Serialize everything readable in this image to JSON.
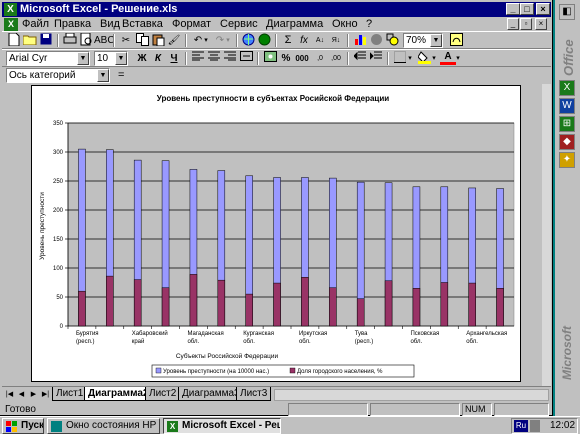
{
  "window": {
    "title": "Microsoft Excel - Решение.xls",
    "app_icon": "X"
  },
  "menu": [
    "Файл",
    "Правка",
    "Вид",
    "Вставка",
    "Формат",
    "Сервис",
    "Диаграмма",
    "Окно",
    "?"
  ],
  "toolbar": {
    "zoom": "70%",
    "font_name": "Arial Cyr",
    "font_size": "10",
    "bold": "Ж",
    "italic": "К",
    "underline": "Ч",
    "percent": "%",
    "currency_icon": "money-icon",
    "font_color": "#ff0000",
    "fill_color": "#ffff00"
  },
  "formula_bar": {
    "name_box": "Ось категорий",
    "equals": "="
  },
  "chart_data": {
    "type": "bar",
    "title": "Уровень преступности в субъектах Росийской Федерации",
    "xlabel": "Субъекты Российской Федерации",
    "ylabel": "Уровень преступности",
    "ylim": [
      0,
      350
    ],
    "yticks": [
      0,
      50,
      100,
      150,
      200,
      250,
      300,
      350
    ],
    "grid": true,
    "legend": "bottom",
    "category_labels": [
      "Бурятия (респ.)",
      "Хабаровский край",
      "Магаданская обл.",
      "Курганская обл.",
      "Иркутская обл.",
      "Тува (респ.)",
      "Псковская обл.",
      "Архангельская обл."
    ],
    "categories": [
      "Бурятия (респ.)",
      "",
      "Хабаровский край",
      "",
      "Магаданская обл.",
      "",
      "Курганская обл.",
      "",
      "Иркутская обл.",
      "",
      "Тува (респ.)",
      "",
      "Псковская обл.",
      "",
      "Архангельская обл.",
      ""
    ],
    "series": [
      {
        "name": "Уровень преступности (на 10000 нас.)",
        "color": "#9999ff",
        "values": [
          305,
          304,
          286,
          285,
          270,
          268,
          259,
          256,
          256,
          255,
          248,
          247,
          240,
          240,
          238,
          237
        ]
      },
      {
        "name": "Доля городского населения, %",
        "color": "#993366",
        "values": [
          60,
          86,
          80,
          66,
          89,
          79,
          55,
          74,
          84,
          66,
          47,
          78,
          65,
          75,
          74,
          65
        ]
      }
    ]
  },
  "sheet_tabs": [
    {
      "label": "Лист1",
      "active": false
    },
    {
      "label": "Диаграмма2",
      "active": true
    },
    {
      "label": "Лист2",
      "active": false
    },
    {
      "label": "Диаграмма3",
      "active": false
    },
    {
      "label": "Лист3",
      "active": false
    }
  ],
  "status": {
    "ready": "Готово",
    "num": "NUM"
  },
  "office_bar": {
    "label_top": "Office",
    "label_bottom": "Microsoft"
  },
  "taskbar": {
    "start": "Пуск",
    "items": [
      {
        "label": "Окно состояния HP",
        "active": false
      },
      {
        "label": "Microsoft Excel - Реше...",
        "active": true
      }
    ],
    "lang": "Ru",
    "clock": "12:02"
  }
}
